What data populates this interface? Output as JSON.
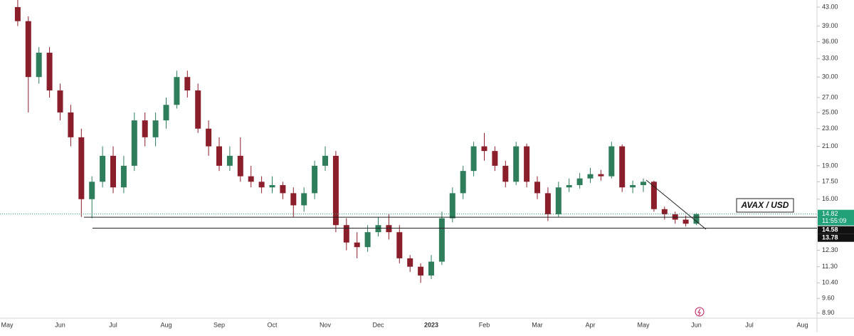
{
  "chart_data": {
    "type": "candlestick",
    "categories": [
      null,
      null,
      null,
      null,
      null,
      "Jun",
      null,
      null,
      null,
      null,
      "Jul",
      null,
      null,
      null,
      null,
      "Aug",
      null,
      null,
      null,
      null,
      "Sep",
      null,
      null,
      null,
      null,
      "Oct",
      null,
      null,
      null,
      null,
      "Nov",
      null,
      null,
      null,
      null,
      "Dec",
      null,
      null,
      null,
      null,
      "2023",
      null,
      null,
      null,
      null,
      "Feb",
      null,
      null,
      null,
      null,
      "Mar",
      null,
      null,
      null,
      null,
      "Apr",
      null,
      null,
      null,
      null,
      "May",
      null,
      null,
      null,
      null,
      "Jun",
      null,
      null,
      null,
      null,
      "Jul",
      null,
      null,
      null,
      null,
      "Aug",
      null,
      null,
      null,
      null
    ],
    "first_label": "May",
    "open": [
      null,
      43,
      40,
      30,
      34,
      28,
      25,
      22,
      16,
      17.5,
      20,
      17,
      19,
      24,
      22,
      24,
      26,
      30,
      28,
      23,
      21,
      19,
      20,
      18,
      17.5,
      17,
      17.2,
      16.5,
      15.5,
      16.5,
      19,
      20,
      14,
      12.8,
      12.5,
      13.5,
      14,
      13.5,
      11.8,
      11.3,
      10.8,
      11.6,
      14.5,
      16.5,
      18.5,
      21,
      20.5,
      19,
      17.5,
      21,
      17.5,
      16.5,
      14.8,
      17,
      17.2,
      17.8,
      18.2,
      18,
      21,
      17,
      17.2,
      17.5,
      15.2,
      14.8,
      14.4,
      14.1,
      null,
      null,
      null,
      null,
      null,
      null,
      null,
      null,
      null,
      null,
      null,
      null,
      null,
      null
    ],
    "high": [
      null,
      45,
      41,
      35,
      35,
      29,
      26,
      23,
      18,
      21,
      21,
      20,
      25,
      25,
      25,
      27,
      31,
      31,
      29,
      24,
      22,
      21,
      22,
      19,
      18,
      18,
      17.5,
      17,
      17,
      19.5,
      21,
      20.5,
      14.5,
      13.5,
      14,
      14.6,
      14.8,
      14,
      12,
      11.5,
      12,
      15,
      17,
      19,
      21.5,
      22.5,
      21,
      19.5,
      21.5,
      21.3,
      18,
      17,
      17.5,
      17.8,
      18.3,
      18.8,
      18.6,
      21.5,
      21.2,
      17.6,
      17.8,
      17.6,
      15.4,
      15,
      14.7,
      14.9,
      null,
      null,
      null,
      null,
      null,
      null,
      null,
      null,
      null,
      null,
      null,
      null,
      null,
      null
    ],
    "low": [
      null,
      39,
      25,
      29,
      27,
      24,
      21,
      14.6,
      14.5,
      17,
      16.5,
      16.5,
      18.5,
      21,
      21,
      23,
      25.5,
      27,
      22.5,
      20,
      18.5,
      18.5,
      17.5,
      17,
      16.5,
      16.5,
      16,
      14.6,
      15,
      16,
      18.5,
      13.5,
      12.3,
      11.8,
      12.2,
      13.2,
      13,
      11.5,
      11,
      10.4,
      10.6,
      11.4,
      14.2,
      16,
      18,
      19.5,
      18.5,
      17,
      17.2,
      17,
      16,
      14.3,
      14.6,
      16.6,
      16.9,
      17.4,
      17.6,
      17.8,
      16.6,
      16.5,
      16.6,
      15,
      14.4,
      14.1,
      13.9,
      14,
      null,
      null,
      null,
      null,
      null,
      null,
      null,
      null,
      null,
      null,
      null,
      null,
      null,
      null
    ],
    "close": [
      null,
      40,
      30,
      34,
      28,
      25,
      22,
      16,
      17.5,
      20,
      17,
      19,
      24,
      22,
      24,
      26,
      30,
      28,
      23,
      21,
      19,
      20,
      18,
      17.5,
      17,
      17.2,
      16.5,
      15.5,
      16.5,
      19,
      20,
      14,
      12.8,
      12.5,
      13.5,
      14,
      13.5,
      11.8,
      11.3,
      10.8,
      11.6,
      14.5,
      16.5,
      18.5,
      21,
      20.5,
      19,
      17.5,
      21,
      17.5,
      16.5,
      14.8,
      17,
      17.2,
      17.8,
      18.2,
      18,
      21,
      17,
      17.2,
      17.5,
      15.2,
      14.8,
      14.4,
      14.1,
      14.82,
      null,
      null,
      null,
      null,
      null,
      null,
      null,
      null,
      null,
      null,
      null,
      null,
      null,
      null
    ],
    "up_color": "#2e7d5b",
    "down_color": "#8b1e2b",
    "log_scale": true,
    "ylim": [
      8.67,
      44.6
    ],
    "yticks": [
      {
        "value": 43,
        "label": "43.00"
      },
      {
        "value": 39,
        "label": "39.00"
      },
      {
        "value": 36,
        "label": "36.00"
      },
      {
        "value": 33,
        "label": "33.00"
      },
      {
        "value": 30,
        "label": "30.00"
      },
      {
        "value": 27,
        "label": "27.00"
      },
      {
        "value": 25,
        "label": "25.00"
      },
      {
        "value": 23,
        "label": "23.00"
      },
      {
        "value": 21,
        "label": "21.00"
      },
      {
        "value": 19,
        "label": "19.00"
      },
      {
        "value": 17.5,
        "label": "17.50"
      },
      {
        "value": 16,
        "label": "16.00"
      },
      {
        "value": 12.3,
        "label": "12.30"
      },
      {
        "value": 11.3,
        "label": "11.30"
      },
      {
        "value": 10.4,
        "label": "10.40"
      },
      {
        "value": 9.6,
        "label": "9.60"
      },
      {
        "value": 8.9,
        "label": "8.90"
      }
    ],
    "last_price": 14.82,
    "countdown": "11:55:09",
    "levels": [
      14.58,
      13.78
    ],
    "annotation": "AVAX / USD"
  }
}
